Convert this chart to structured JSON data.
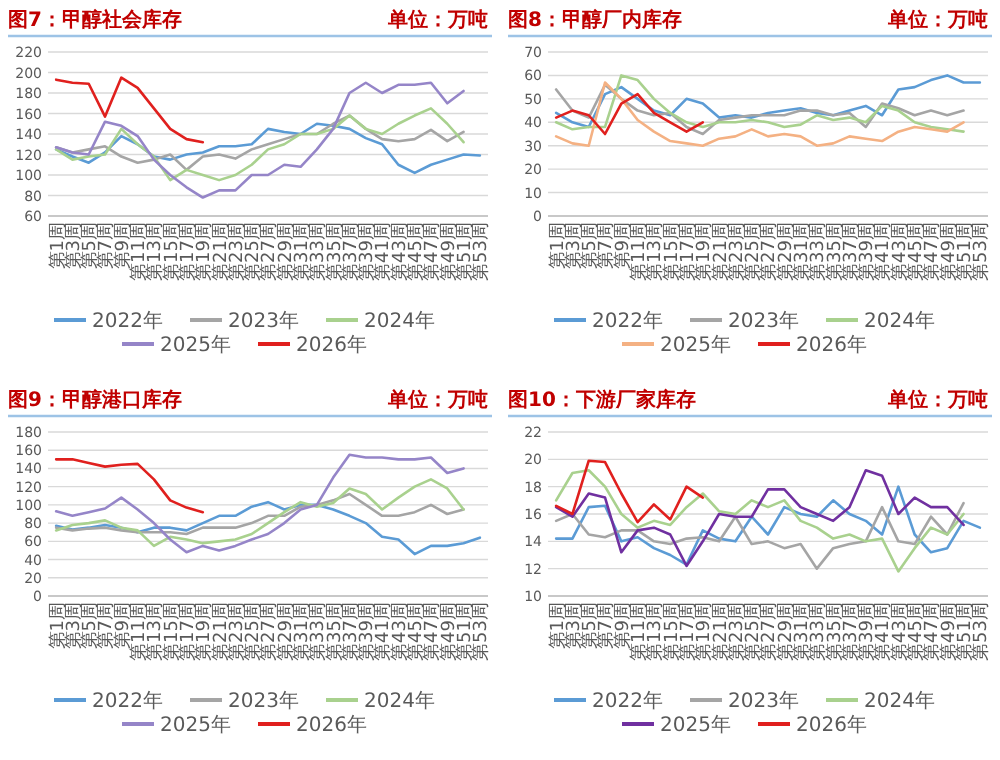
{
  "chart_data": [
    {
      "type": "line",
      "title": "图7：甲醇社会库存",
      "subtitle": "单位：万吨",
      "categories": [
        "第1周",
        "第3周",
        "第5周",
        "第7周",
        "第9周",
        "第11周",
        "第13周",
        "第15周",
        "第17周",
        "第19周",
        "第21周",
        "第23周",
        "第25周",
        "第27周",
        "第29周",
        "第31周",
        "第33周",
        "第35周",
        "第37周",
        "第39周",
        "第41周",
        "第43周",
        "第45周",
        "第47周",
        "第49周",
        "第51周",
        "第53周"
      ],
      "ylim": [
        60,
        220
      ],
      "yticks": [
        60,
        80,
        100,
        120,
        140,
        160,
        180,
        200,
        220
      ],
      "grid": "y",
      "legend": "bottom",
      "series": [
        {
          "name": "2022年",
          "color": "#5b9bd5",
          "values": [
            125,
            118,
            112,
            122,
            138,
            130,
            118,
            115,
            120,
            122,
            128,
            128,
            130,
            145,
            142,
            140,
            150,
            148,
            145,
            136,
            130,
            110,
            102,
            110,
            115,
            120,
            119
          ]
        },
        {
          "name": "2023年",
          "color": "#a5a5a5",
          "values": [
            127,
            122,
            125,
            128,
            118,
            112,
            115,
            120,
            105,
            118,
            120,
            116,
            125,
            130,
            135,
            140,
            140,
            150,
            158,
            145,
            135,
            133,
            135,
            144,
            133,
            142,
            null
          ]
        },
        {
          "name": "2024年",
          "color": "#a9d18e",
          "values": [
            125,
            115,
            118,
            120,
            145,
            130,
            118,
            95,
            105,
            100,
            95,
            100,
            110,
            125,
            130,
            140,
            140,
            145,
            158,
            145,
            140,
            150,
            158,
            165,
            150,
            132,
            null
          ]
        },
        {
          "name": "2025年",
          "color": "#9585c8",
          "values": [
            127,
            122,
            120,
            152,
            148,
            138,
            115,
            100,
            88,
            78,
            85,
            85,
            100,
            100,
            110,
            108,
            125,
            145,
            180,
            190,
            180,
            188,
            188,
            190,
            170,
            182,
            null
          ]
        },
        {
          "name": "2026年",
          "color": "#e0201e",
          "values": [
            193,
            190,
            189,
            157,
            195,
            185,
            165,
            145,
            135,
            132,
            null,
            null,
            null,
            null,
            null,
            null,
            null,
            null,
            null,
            null,
            null,
            null,
            null,
            null,
            null,
            null,
            null
          ]
        }
      ]
    },
    {
      "type": "line",
      "title": "图8：甲醇厂内库存",
      "subtitle": "单位：万吨",
      "categories": [
        "第1周",
        "第3周",
        "第5周",
        "第7周",
        "第9周",
        "第11周",
        "第13周",
        "第15周",
        "第17周",
        "第19周",
        "第21周",
        "第23周",
        "第25周",
        "第27周",
        "第29周",
        "第31周",
        "第33周",
        "第35周",
        "第37周",
        "第39周",
        "第41周",
        "第43周",
        "第45周",
        "第47周",
        "第49周",
        "第51周",
        "第53周"
      ],
      "ylim": [
        0,
        70
      ],
      "yticks": [
        0,
        10,
        20,
        30,
        40,
        50,
        60,
        70
      ],
      "grid": "y",
      "legend": "bottom",
      "series": [
        {
          "name": "2022年",
          "color": "#5b9bd5",
          "values": [
            44,
            40,
            38,
            52,
            55,
            50,
            45,
            43,
            50,
            48,
            42,
            43,
            42,
            44,
            45,
            46,
            44,
            43,
            45,
            47,
            43,
            54,
            55,
            58,
            60,
            57,
            57
          ]
        },
        {
          "name": "2023年",
          "color": "#a5a5a5",
          "values": [
            54,
            45,
            42,
            56,
            50,
            45,
            43,
            44,
            38,
            35,
            41,
            42,
            43,
            43,
            43,
            45,
            45,
            43,
            44,
            38,
            48,
            46,
            43,
            45,
            43,
            45,
            null
          ]
        },
        {
          "name": "2024年",
          "color": "#a9d18e",
          "values": [
            40,
            37,
            38,
            38,
            60,
            58,
            50,
            44,
            40,
            38,
            40,
            40,
            41,
            40,
            38,
            39,
            43,
            41,
            42,
            40,
            47,
            45,
            40,
            38,
            37,
            36,
            null
          ]
        },
        {
          "name": "2025年",
          "color": "#f4b183",
          "values": [
            34,
            31,
            30,
            57,
            50,
            41,
            36,
            32,
            31,
            30,
            33,
            34,
            37,
            34,
            35,
            34,
            30,
            31,
            34,
            33,
            32,
            36,
            38,
            37,
            36,
            40,
            null
          ]
        },
        {
          "name": "2026年",
          "color": "#e0201e",
          "values": [
            42,
            45,
            43,
            35,
            48,
            52,
            44,
            40,
            36,
            40,
            null,
            null,
            null,
            null,
            null,
            null,
            null,
            null,
            null,
            null,
            null,
            null,
            null,
            null,
            null,
            null,
            null
          ]
        }
      ]
    },
    {
      "type": "line",
      "title": "图9：甲醇港口库存",
      "subtitle": "单位：万吨",
      "categories": [
        "第1周",
        "第3周",
        "第5周",
        "第7周",
        "第9周",
        "第11周",
        "第13周",
        "第15周",
        "第17周",
        "第19周",
        "第21周",
        "第23周",
        "第25周",
        "第27周",
        "第29周",
        "第31周",
        "第33周",
        "第35周",
        "第37周",
        "第39周",
        "第41周",
        "第43周",
        "第45周",
        "第47周",
        "第49周",
        "第51周",
        "第53周"
      ],
      "ylim": [
        0,
        180
      ],
      "yticks": [
        0,
        20,
        40,
        60,
        80,
        100,
        120,
        140,
        160,
        180
      ],
      "grid": "y",
      "legend": "bottom",
      "series": [
        {
          "name": "2022年",
          "color": "#5b9bd5",
          "values": [
            77,
            73,
            75,
            78,
            75,
            70,
            75,
            75,
            72,
            80,
            88,
            88,
            98,
            103,
            95,
            100,
            100,
            95,
            88,
            80,
            65,
            62,
            46,
            55,
            55,
            58,
            64
          ]
        },
        {
          "name": "2023年",
          "color": "#a5a5a5",
          "values": [
            75,
            72,
            74,
            75,
            72,
            70,
            70,
            70,
            68,
            75,
            75,
            75,
            80,
            88,
            88,
            98,
            100,
            105,
            112,
            100,
            88,
            88,
            92,
            100,
            90,
            95,
            null
          ]
        },
        {
          "name": "2024年",
          "color": "#a9d18e",
          "values": [
            72,
            78,
            80,
            83,
            75,
            72,
            55,
            65,
            62,
            58,
            60,
            62,
            68,
            80,
            92,
            103,
            98,
            102,
            118,
            112,
            95,
            108,
            120,
            128,
            118,
            95,
            null
          ]
        },
        {
          "name": "2025年",
          "color": "#9585c8",
          "values": [
            93,
            88,
            92,
            96,
            108,
            95,
            80,
            62,
            48,
            55,
            50,
            55,
            62,
            68,
            80,
            95,
            100,
            130,
            155,
            152,
            152,
            150,
            150,
            152,
            135,
            140,
            null
          ]
        },
        {
          "name": "2026年",
          "color": "#e0201e",
          "values": [
            150,
            150,
            146,
            142,
            144,
            145,
            128,
            105,
            97,
            92,
            null,
            null,
            null,
            null,
            null,
            null,
            null,
            null,
            null,
            null,
            null,
            null,
            null,
            null,
            null,
            null,
            null
          ]
        }
      ]
    },
    {
      "type": "line",
      "title": "图10：下游厂家库存",
      "subtitle": "单位：万吨",
      "categories": [
        "第1周",
        "第3周",
        "第5周",
        "第7周",
        "第9周",
        "第11周",
        "第13周",
        "第15周",
        "第17周",
        "第19周",
        "第21周",
        "第23周",
        "第25周",
        "第27周",
        "第29周",
        "第31周",
        "第33周",
        "第35周",
        "第37周",
        "第39周",
        "第41周",
        "第43周",
        "第45周",
        "第47周",
        "第49周",
        "第51周",
        "第53周"
      ],
      "ylim": [
        10,
        22
      ],
      "yticks": [
        10,
        12,
        14,
        16,
        18,
        20,
        22
      ],
      "grid": "y",
      "legend": "bottom",
      "series": [
        {
          "name": "2022年",
          "color": "#5b9bd5",
          "values": [
            14.2,
            14.2,
            16.5,
            16.6,
            14.0,
            14.3,
            13.5,
            13.0,
            12.3,
            14.8,
            14.2,
            14.0,
            15.8,
            14.5,
            16.5,
            16.0,
            15.8,
            17.0,
            16.0,
            15.5,
            14.5,
            18.0,
            14.5,
            13.2,
            13.5,
            15.5,
            15.0
          ]
        },
        {
          "name": "2023年",
          "color": "#a5a5a5",
          "values": [
            15.5,
            16.0,
            14.5,
            14.3,
            14.8,
            14.8,
            14.0,
            13.8,
            14.2,
            14.3,
            14.0,
            15.8,
            13.8,
            14.0,
            13.5,
            13.8,
            12.0,
            13.5,
            13.8,
            14.0,
            16.5,
            14.0,
            13.8,
            15.8,
            14.5,
            16.8,
            null
          ]
        },
        {
          "name": "2024年",
          "color": "#a9d18e",
          "values": [
            17.0,
            19.0,
            19.2,
            18.0,
            16.0,
            15.0,
            15.5,
            15.2,
            16.5,
            17.5,
            16.2,
            16.0,
            17.0,
            16.5,
            17.0,
            15.5,
            15.0,
            14.2,
            14.5,
            14.0,
            14.2,
            11.8,
            13.5,
            15.0,
            14.5,
            16.0,
            null
          ]
        },
        {
          "name": "2025年",
          "color": "#7030a0",
          "values": [
            16.5,
            15.8,
            17.5,
            17.2,
            13.2,
            14.8,
            15.0,
            14.5,
            12.2,
            14.0,
            16.0,
            15.8,
            15.8,
            17.8,
            17.8,
            16.5,
            16.0,
            15.5,
            16.5,
            19.2,
            18.8,
            16.0,
            17.2,
            16.5,
            16.5,
            15.2,
            null
          ]
        },
        {
          "name": "2026年",
          "color": "#e0201e",
          "values": [
            16.6,
            16.0,
            19.9,
            19.8,
            17.5,
            15.4,
            16.7,
            15.6,
            18.0,
            17.2,
            null,
            null,
            null,
            null,
            null,
            null,
            null,
            null,
            null,
            null,
            null,
            null,
            null,
            null,
            null,
            null,
            null
          ]
        }
      ]
    }
  ]
}
